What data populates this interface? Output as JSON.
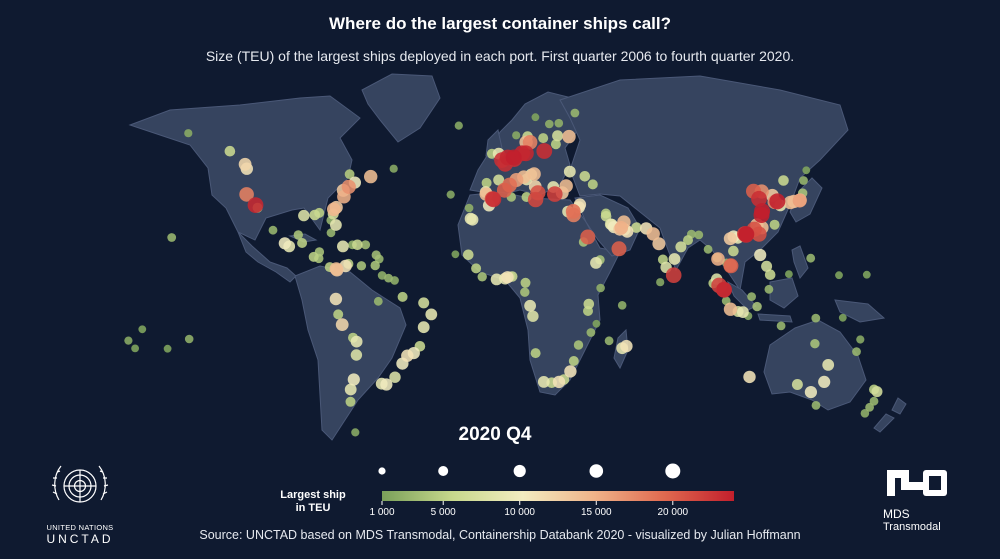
{
  "title": "Where do the largest container ships call?",
  "subtitle": "Size (TEU) of the largest ships deployed in each port. First quarter 2006 to fourth quarter 2020.",
  "period": "2020 Q4",
  "legend": {
    "title_line1": "Largest ship",
    "title_line2": "in TEU",
    "ticks": [
      "1 000",
      "5 000",
      "10 000",
      "15 000",
      "20 000"
    ],
    "tick_values": [
      1000,
      5000,
      10000,
      15000,
      20000
    ],
    "max_value": 24000,
    "colors": [
      "#7aa05a",
      "#c7d88c",
      "#f2ecc0",
      "#f0b48a",
      "#e06a50",
      "#c21f2c"
    ]
  },
  "source": "Source: UNCTAD based on MDS Transmodal, Containership Databank 2020 - visualized by Julian Hoffmann",
  "logos": {
    "un_line1": "UNITED NATIONS",
    "un_line2": "UNCTAD",
    "mds_line1": "MDS",
    "mds_line2": "Transmodal"
  },
  "colors": {
    "background": "#0f1a30",
    "land": "#36445f",
    "land_border": "#4a5877"
  },
  "ports": [
    {
      "lon": -122.4,
      "lat": 37.8,
      "teu": 18000
    },
    {
      "lon": -118.2,
      "lat": 33.7,
      "teu": 23500
    },
    {
      "lon": -122.3,
      "lat": 47.6,
      "teu": 11000
    },
    {
      "lon": -123.1,
      "lat": 49.3,
      "teu": 12000
    },
    {
      "lon": -117.2,
      "lat": 32.7,
      "teu": 5000
    },
    {
      "lon": -130.3,
      "lat": 54.3,
      "teu": 6000
    },
    {
      "lon": -150.0,
      "lat": 61.2,
      "teu": 2000
    },
    {
      "lon": -109.9,
      "lat": 24.1,
      "teu": 3000
    },
    {
      "lon": -104.3,
      "lat": 19.1,
      "teu": 10000
    },
    {
      "lon": -102.2,
      "lat": 17.9,
      "teu": 9000
    },
    {
      "lon": -96.1,
      "lat": 19.2,
      "teu": 5000
    },
    {
      "lon": -97.9,
      "lat": 22.3,
      "teu": 4000
    },
    {
      "lon": -95.3,
      "lat": 29.7,
      "teu": 8000
    },
    {
      "lon": -90.1,
      "lat": 29.9,
      "teu": 6000
    },
    {
      "lon": -88.0,
      "lat": 30.7,
      "teu": 5000
    },
    {
      "lon": -82.5,
      "lat": 27.9,
      "teu": 3000
    },
    {
      "lon": -80.1,
      "lat": 26.1,
      "teu": 9000
    },
    {
      "lon": -81.4,
      "lat": 30.3,
      "teu": 7000
    },
    {
      "lon": -81.1,
      "lat": 32.1,
      "teu": 14500
    },
    {
      "lon": -79.9,
      "lat": 32.8,
      "teu": 13000
    },
    {
      "lon": -76.3,
      "lat": 36.9,
      "teu": 15000
    },
    {
      "lon": -76.6,
      "lat": 39.3,
      "teu": 13000
    },
    {
      "lon": -74.0,
      "lat": 40.7,
      "teu": 17000
    },
    {
      "lon": -71.1,
      "lat": 42.3,
      "teu": 10000
    },
    {
      "lon": -63.6,
      "lat": 44.6,
      "teu": 14000
    },
    {
      "lon": -73.6,
      "lat": 45.5,
      "teu": 4500
    },
    {
      "lon": -52.7,
      "lat": 47.6,
      "teu": 2000
    },
    {
      "lon": -66.1,
      "lat": 18.5,
      "teu": 3500
    },
    {
      "lon": -82.4,
      "lat": 23.1,
      "teu": 3000
    },
    {
      "lon": -76.8,
      "lat": 17.9,
      "teu": 9000
    },
    {
      "lon": -69.9,
      "lat": 18.5,
      "teu": 6000
    },
    {
      "lon": -72.3,
      "lat": 18.5,
      "teu": 3000
    },
    {
      "lon": -79.9,
      "lat": 9.3,
      "teu": 14000
    },
    {
      "lon": -79.6,
      "lat": 8.9,
      "teu": 13000
    },
    {
      "lon": -75.5,
      "lat": 10.4,
      "teu": 11000
    },
    {
      "lon": -74.2,
      "lat": 11.2,
      "teu": 5000
    },
    {
      "lon": -68.0,
      "lat": 10.5,
      "teu": 4000
    },
    {
      "lon": -61.5,
      "lat": 10.6,
      "teu": 4000
    },
    {
      "lon": -59.6,
      "lat": 13.1,
      "teu": 3000
    },
    {
      "lon": -61.0,
      "lat": 14.6,
      "teu": 3500
    },
    {
      "lon": -87.9,
      "lat": 15.8,
      "teu": 4000
    },
    {
      "lon": -83.0,
      "lat": 10.0,
      "teu": 5000
    },
    {
      "lon": -90.6,
      "lat": 13.9,
      "teu": 5000
    },
    {
      "lon": -88.2,
      "lat": 13.3,
      "teu": 4000
    },
    {
      "lon": -80.1,
      "lat": -2.2,
      "teu": 11000
    },
    {
      "lon": -79.0,
      "lat": -8.1,
      "teu": 5000
    },
    {
      "lon": -77.1,
      "lat": -12.0,
      "teu": 12000
    },
    {
      "lon": -72.0,
      "lat": -17.0,
      "teu": 5000
    },
    {
      "lon": -70.3,
      "lat": -18.5,
      "teu": 9000
    },
    {
      "lon": -70.4,
      "lat": -23.6,
      "teu": 8000
    },
    {
      "lon": -71.6,
      "lat": -33.0,
      "teu": 10000
    },
    {
      "lon": -73.1,
      "lat": -36.8,
      "teu": 9000
    },
    {
      "lon": -73.2,
      "lat": -41.5,
      "teu": 5000
    },
    {
      "lon": -70.9,
      "lat": -53.2,
      "teu": 2000
    },
    {
      "lon": -58.4,
      "lat": -34.6,
      "teu": 9000
    },
    {
      "lon": -56.2,
      "lat": -34.9,
      "teu": 10000
    },
    {
      "lon": -52.1,
      "lat": -32.1,
      "teu": 8000
    },
    {
      "lon": -48.6,
      "lat": -26.9,
      "teu": 10000
    },
    {
      "lon": -46.3,
      "lat": -23.9,
      "teu": 11000
    },
    {
      "lon": -43.2,
      "lat": -22.9,
      "teu": 10000
    },
    {
      "lon": -40.3,
      "lat": -20.3,
      "teu": 6000
    },
    {
      "lon": -38.5,
      "lat": -13.0,
      "teu": 9000
    },
    {
      "lon": -34.9,
      "lat": -8.1,
      "teu": 9000
    },
    {
      "lon": -38.5,
      "lat": -3.7,
      "teu": 7000
    },
    {
      "lon": -48.5,
      "lat": -1.4,
      "teu": 5000
    },
    {
      "lon": -60.0,
      "lat": -3.1,
      "teu": 3000
    },
    {
      "lon": -55.2,
      "lat": 5.8,
      "teu": 3000
    },
    {
      "lon": -58.2,
      "lat": 6.8,
      "teu": 2500
    },
    {
      "lon": -52.3,
      "lat": 4.9,
      "teu": 2500
    },
    {
      "lon": -157.9,
      "lat": 21.3,
      "teu": 3000
    },
    {
      "lon": -149.6,
      "lat": -17.5,
      "teu": 2500
    },
    {
      "lon": -171.8,
      "lat": -13.8,
      "teu": 1500
    },
    {
      "lon": -175.2,
      "lat": -21.1,
      "teu": 1500
    },
    {
      "lon": -159.8,
      "lat": -21.2,
      "teu": 1500
    },
    {
      "lon": -178.4,
      "lat": -18.1,
      "teu": 2000
    },
    {
      "lon": -6.0,
      "lat": 36.1,
      "teu": 21000
    },
    {
      "lon": -5.5,
      "lat": 35.9,
      "teu": 23000
    },
    {
      "lon": -9.1,
      "lat": 38.7,
      "teu": 9000
    },
    {
      "lon": -8.9,
      "lat": 37.9,
      "teu": 14000
    },
    {
      "lon": -8.7,
      "lat": 42.2,
      "teu": 5000
    },
    {
      "lon": -3.0,
      "lat": 43.3,
      "teu": 7000
    },
    {
      "lon": -0.3,
      "lat": 39.4,
      "teu": 20000
    },
    {
      "lon": 2.2,
      "lat": 41.4,
      "teu": 19000
    },
    {
      "lon": 5.4,
      "lat": 43.3,
      "teu": 16000
    },
    {
      "lon": 8.9,
      "lat": 44.4,
      "teu": 14000
    },
    {
      "lon": 10.3,
      "lat": 43.5,
      "teu": 9000
    },
    {
      "lon": 12.4,
      "lat": 45.4,
      "teu": 9000
    },
    {
      "lon": 13.8,
      "lat": 45.6,
      "teu": 14000
    },
    {
      "lon": 14.3,
      "lat": 40.8,
      "teu": 12000
    },
    {
      "lon": 15.6,
      "lat": 38.4,
      "teu": 21000
    },
    {
      "lon": 14.5,
      "lat": 35.8,
      "teu": 21500
    },
    {
      "lon": 23.6,
      "lat": 37.9,
      "teu": 22000
    },
    {
      "lon": 22.9,
      "lat": 40.6,
      "teu": 9000
    },
    {
      "lon": 29.0,
      "lat": 41.0,
      "teu": 14000
    },
    {
      "lon": 27.1,
      "lat": 38.4,
      "teu": 13000
    },
    {
      "lon": 35.5,
      "lat": 33.9,
      "teu": 11000
    },
    {
      "lon": 35.0,
      "lat": 32.8,
      "teu": 10000
    },
    {
      "lon": 32.3,
      "lat": 31.3,
      "teu": 19000
    },
    {
      "lon": 29.9,
      "lat": 31.2,
      "teu": 9000
    },
    {
      "lon": 10.2,
      "lat": 36.8,
      "teu": 5000
    },
    {
      "lon": 3.0,
      "lat": 36.8,
      "teu": 4000
    },
    {
      "lon": 30.7,
      "lat": 46.5,
      "teu": 9000
    },
    {
      "lon": 37.8,
      "lat": 44.7,
      "teu": 6000
    },
    {
      "lon": 41.6,
      "lat": 41.6,
      "teu": 5000
    },
    {
      "lon": 0.1,
      "lat": 49.5,
      "teu": 23000
    },
    {
      "lon": 1.3,
      "lat": 51.9,
      "teu": 23500
    },
    {
      "lon": -1.4,
      "lat": 50.9,
      "teu": 23000
    },
    {
      "lon": -3.0,
      "lat": 53.4,
      "teu": 9000
    },
    {
      "lon": -6.2,
      "lat": 53.3,
      "teu": 5000
    },
    {
      "lon": 4.4,
      "lat": 51.3,
      "teu": 23000
    },
    {
      "lon": 4.1,
      "lat": 51.9,
      "teu": 24000
    },
    {
      "lon": 8.1,
      "lat": 53.5,
      "teu": 23500
    },
    {
      "lon": 9.9,
      "lat": 53.5,
      "teu": 23500
    },
    {
      "lon": 10.0,
      "lat": 57.7,
      "teu": 14000
    },
    {
      "lon": 11.9,
      "lat": 57.7,
      "teu": 18000
    },
    {
      "lon": 18.6,
      "lat": 54.4,
      "teu": 23000
    },
    {
      "lon": 24.1,
      "lat": 57.0,
      "teu": 5000
    },
    {
      "lon": 24.9,
      "lat": 60.2,
      "teu": 7000
    },
    {
      "lon": 30.3,
      "lat": 59.9,
      "teu": 14000
    },
    {
      "lon": 10.7,
      "lat": 59.9,
      "teu": 6000
    },
    {
      "lon": 5.3,
      "lat": 60.4,
      "teu": 2000
    },
    {
      "lon": 18.1,
      "lat": 59.3,
      "teu": 5000
    },
    {
      "lon": 21.0,
      "lat": 64.7,
      "teu": 2500
    },
    {
      "lon": 25.5,
      "lat": 65.0,
      "teu": 2500
    },
    {
      "lon": 14.4,
      "lat": 67.3,
      "teu": 1500
    },
    {
      "lon": -21.9,
      "lat": 64.1,
      "teu": 2000
    },
    {
      "lon": 33.1,
      "lat": 68.9,
      "teu": 3000
    },
    {
      "lon": -16.3,
      "lat": 28.5,
      "teu": 9000
    },
    {
      "lon": -15.4,
      "lat": 28.1,
      "teu": 9000
    },
    {
      "lon": -7.6,
      "lat": 33.6,
      "teu": 10000
    },
    {
      "lon": -25.7,
      "lat": 37.7,
      "teu": 2000
    },
    {
      "lon": -17.0,
      "lat": 32.6,
      "teu": 2500
    },
    {
      "lon": -23.5,
      "lat": 14.9,
      "teu": 1500
    },
    {
      "lon": -17.4,
      "lat": 14.7,
      "teu": 6000
    },
    {
      "lon": -13.7,
      "lat": 9.5,
      "teu": 5000
    },
    {
      "lon": -10.8,
      "lat": 6.3,
      "teu": 4000
    },
    {
      "lon": -4.0,
      "lat": 5.3,
      "teu": 9000
    },
    {
      "lon": 0.0,
      "lat": 5.6,
      "teu": 9000
    },
    {
      "lon": 1.2,
      "lat": 6.1,
      "teu": 11000
    },
    {
      "lon": 2.4,
      "lat": 6.4,
      "teu": 5000
    },
    {
      "lon": 3.4,
      "lat": 6.4,
      "teu": 6000
    },
    {
      "lon": 9.7,
      "lat": 4.0,
      "teu": 5000
    },
    {
      "lon": 9.4,
      "lat": 0.4,
      "teu": 4000
    },
    {
      "lon": 11.9,
      "lat": -4.8,
      "teu": 9000
    },
    {
      "lon": 13.2,
      "lat": -8.8,
      "teu": 8000
    },
    {
      "lon": 14.5,
      "lat": -22.9,
      "teu": 5000
    },
    {
      "lon": 18.4,
      "lat": -33.9,
      "teu": 9000
    },
    {
      "lon": 22.1,
      "lat": -34.2,
      "teu": 6000
    },
    {
      "lon": 25.6,
      "lat": -33.9,
      "teu": 11000
    },
    {
      "lon": 27.9,
      "lat": -33.0,
      "teu": 6000
    },
    {
      "lon": 31.0,
      "lat": -29.9,
      "teu": 11000
    },
    {
      "lon": 32.6,
      "lat": -25.9,
      "teu": 5000
    },
    {
      "lon": 34.8,
      "lat": -19.8,
      "teu": 4000
    },
    {
      "lon": 40.7,
      "lat": -15.0,
      "teu": 3000
    },
    {
      "lon": 39.3,
      "lat": -6.8,
      "teu": 5000
    },
    {
      "lon": 39.7,
      "lat": -4.1,
      "teu": 6000
    },
    {
      "lon": 45.3,
      "lat": 2.0,
      "teu": 2500
    },
    {
      "lon": 43.1,
      "lat": 11.6,
      "teu": 9000
    },
    {
      "lon": 45.0,
      "lat": 12.8,
      "teu": 4000
    },
    {
      "lon": 39.2,
      "lat": 21.5,
      "teu": 20000
    },
    {
      "lon": 37.2,
      "lat": 19.6,
      "teu": 4000
    },
    {
      "lon": 32.5,
      "lat": 29.9,
      "teu": 18000
    },
    {
      "lon": 49.3,
      "lat": -18.2,
      "teu": 3000
    },
    {
      "lon": 57.5,
      "lat": -20.2,
      "teu": 11000
    },
    {
      "lon": 55.5,
      "lat": -21.0,
      "teu": 9000
    },
    {
      "lon": 55.5,
      "lat": -4.6,
      "teu": 2500
    },
    {
      "lon": 43.3,
      "lat": -11.7,
      "teu": 1500
    },
    {
      "lon": 50.0,
      "lat": 26.4,
      "teu": 8000
    },
    {
      "lon": 50.6,
      "lat": 26.2,
      "teu": 9000
    },
    {
      "lon": 51.6,
      "lat": 25.3,
      "teu": 10000
    },
    {
      "lon": 54.4,
      "lat": 24.5,
      "teu": 13000
    },
    {
      "lon": 55.1,
      "lat": 25.0,
      "teu": 15000
    },
    {
      "lon": 56.3,
      "lat": 27.2,
      "teu": 14000
    },
    {
      "lon": 47.9,
      "lat": 29.4,
      "teu": 6000
    },
    {
      "lon": 47.8,
      "lat": 30.5,
      "teu": 5000
    },
    {
      "lon": 56.6,
      "lat": 24.4,
      "teu": 10000
    },
    {
      "lon": 57.9,
      "lat": 23.6,
      "teu": 11000
    },
    {
      "lon": 54.0,
      "lat": 17.0,
      "teu": 20000
    },
    {
      "lon": 66.9,
      "lat": 24.8,
      "teu": 11000
    },
    {
      "lon": 62.3,
      "lat": 25.1,
      "teu": 6000
    },
    {
      "lon": 72.9,
      "lat": 18.9,
      "teu": 13000
    },
    {
      "lon": 70.2,
      "lat": 22.7,
      "teu": 14000
    },
    {
      "lon": 74.8,
      "lat": 12.9,
      "teu": 5000
    },
    {
      "lon": 76.3,
      "lat": 9.9,
      "teu": 8000
    },
    {
      "lon": 79.9,
      "lat": 6.9,
      "teu": 22000
    },
    {
      "lon": 80.3,
      "lat": 13.1,
      "teu": 9000
    },
    {
      "lon": 83.3,
      "lat": 17.7,
      "teu": 7000
    },
    {
      "lon": 86.7,
      "lat": 20.3,
      "teu": 5000
    },
    {
      "lon": 88.3,
      "lat": 22.6,
      "teu": 3000
    },
    {
      "lon": 91.8,
      "lat": 22.3,
      "teu": 3000
    },
    {
      "lon": 96.2,
      "lat": 16.8,
      "teu": 3000
    },
    {
      "lon": 73.5,
      "lat": 4.2,
      "teu": 2000
    },
    {
      "lon": 100.5,
      "lat": 13.6,
      "teu": 4000
    },
    {
      "lon": 100.9,
      "lat": 13.1,
      "teu": 15000
    },
    {
      "lon": 101.4,
      "lat": 3.0,
      "teu": 22000
    },
    {
      "lon": 103.8,
      "lat": 1.3,
      "teu": 23500
    },
    {
      "lon": 103.6,
      "lat": 1.4,
      "teu": 22000
    },
    {
      "lon": 100.3,
      "lat": 5.4,
      "teu": 8000
    },
    {
      "lon": 98.7,
      "lat": 3.8,
      "teu": 5000
    },
    {
      "lon": 106.8,
      "lat": -6.1,
      "teu": 14000
    },
    {
      "lon": 112.7,
      "lat": -7.2,
      "teu": 9000
    },
    {
      "lon": 110.4,
      "lat": -7.0,
      "teu": 7000
    },
    {
      "lon": 104.8,
      "lat": -2.9,
      "teu": 3000
    },
    {
      "lon": 115.2,
      "lat": -8.7,
      "teu": 2000
    },
    {
      "lon": 116.8,
      "lat": -1.3,
      "teu": 3000
    },
    {
      "lon": 119.4,
      "lat": -5.1,
      "teu": 4000
    },
    {
      "lon": 125.0,
      "lat": 1.5,
      "teu": 3000
    },
    {
      "lon": 106.7,
      "lat": 10.6,
      "teu": 14000
    },
    {
      "lon": 107.0,
      "lat": 10.5,
      "teu": 20000
    },
    {
      "lon": 106.7,
      "lat": 20.9,
      "teu": 13000
    },
    {
      "lon": 108.2,
      "lat": 16.1,
      "teu": 6000
    },
    {
      "lon": 104.9,
      "lat": 11.6,
      "teu": 3000
    },
    {
      "lon": 120.9,
      "lat": 14.6,
      "teu": 10000
    },
    {
      "lon": 123.9,
      "lat": 10.3,
      "teu": 7000
    },
    {
      "lon": 125.6,
      "lat": 7.1,
      "teu": 6000
    },
    {
      "lon": 114.2,
      "lat": 22.3,
      "teu": 23000
    },
    {
      "lon": 114.3,
      "lat": 22.6,
      "teu": 24000
    },
    {
      "lon": 113.6,
      "lat": 22.7,
      "teu": 22000
    },
    {
      "lon": 118.1,
      "lat": 24.5,
      "teu": 21000
    },
    {
      "lon": 119.3,
      "lat": 26.1,
      "teu": 14000
    },
    {
      "lon": 121.5,
      "lat": 29.9,
      "teu": 24000
    },
    {
      "lon": 121.8,
      "lat": 31.4,
      "teu": 24000
    },
    {
      "lon": 120.3,
      "lat": 36.1,
      "teu": 23000
    },
    {
      "lon": 117.7,
      "lat": 39.0,
      "teu": 20000
    },
    {
      "lon": 121.6,
      "lat": 38.9,
      "teu": 17000
    },
    {
      "lon": 110.3,
      "lat": 21.2,
      "teu": 9000
    },
    {
      "lon": 108.3,
      "lat": 21.7,
      "teu": 10000
    },
    {
      "lon": 120.3,
      "lat": 22.6,
      "teu": 21000
    },
    {
      "lon": 121.7,
      "lat": 25.1,
      "teu": 14000
    },
    {
      "lon": 129.0,
      "lat": 35.1,
      "teu": 24000
    },
    {
      "lon": 126.6,
      "lat": 37.4,
      "teu": 13000
    },
    {
      "lon": 127.7,
      "lat": 34.9,
      "teu": 17000
    },
    {
      "lon": 135.2,
      "lat": 34.7,
      "teu": 14000
    },
    {
      "lon": 136.9,
      "lat": 35.1,
      "teu": 14000
    },
    {
      "lon": 139.8,
      "lat": 35.6,
      "teu": 14000
    },
    {
      "lon": 139.6,
      "lat": 35.4,
      "teu": 16000
    },
    {
      "lon": 130.4,
      "lat": 33.6,
      "teu": 9000
    },
    {
      "lon": 141.0,
      "lat": 38.3,
      "teu": 4000
    },
    {
      "lon": 141.4,
      "lat": 43.1,
      "teu": 3000
    },
    {
      "lon": 131.9,
      "lat": 43.1,
      "teu": 6000
    },
    {
      "lon": 142.7,
      "lat": 47.0,
      "teu": 1500
    },
    {
      "lon": 127.7,
      "lat": 26.2,
      "teu": 5000
    },
    {
      "lon": 153.1,
      "lat": -27.4,
      "teu": 9000
    },
    {
      "lon": 151.2,
      "lat": -33.9,
      "teu": 10000
    },
    {
      "lon": 144.9,
      "lat": -37.8,
      "teu": 10000
    },
    {
      "lon": 138.5,
      "lat": -34.9,
      "teu": 7000
    },
    {
      "lon": 115.8,
      "lat": -32.0,
      "teu": 11000
    },
    {
      "lon": 147.3,
      "lat": -42.9,
      "teu": 3000
    },
    {
      "lon": 146.8,
      "lat": -19.3,
      "teu": 4000
    },
    {
      "lon": 130.8,
      "lat": -12.5,
      "teu": 3000
    },
    {
      "lon": 174.8,
      "lat": -36.8,
      "teu": 5000
    },
    {
      "lon": 176.2,
      "lat": -37.6,
      "teu": 7000
    },
    {
      "lon": 174.8,
      "lat": -41.3,
      "teu": 3000
    },
    {
      "lon": 172.7,
      "lat": -43.6,
      "teu": 3000
    },
    {
      "lon": 170.5,
      "lat": -45.9,
      "teu": 2500
    },
    {
      "lon": 147.2,
      "lat": -9.5,
      "teu": 3000
    },
    {
      "lon": 166.5,
      "lat": -22.3,
      "teu": 3000
    },
    {
      "lon": 168.3,
      "lat": -17.7,
      "teu": 2000
    },
    {
      "lon": 160.0,
      "lat": -9.4,
      "teu": 1500
    },
    {
      "lon": 144.8,
      "lat": 13.4,
      "teu": 3000
    },
    {
      "lon": 134.5,
      "lat": 7.3,
      "teu": 1500
    },
    {
      "lon": 158.2,
      "lat": 6.9,
      "teu": 1500
    },
    {
      "lon": 171.4,
      "lat": 7.1,
      "teu": 1500
    }
  ]
}
